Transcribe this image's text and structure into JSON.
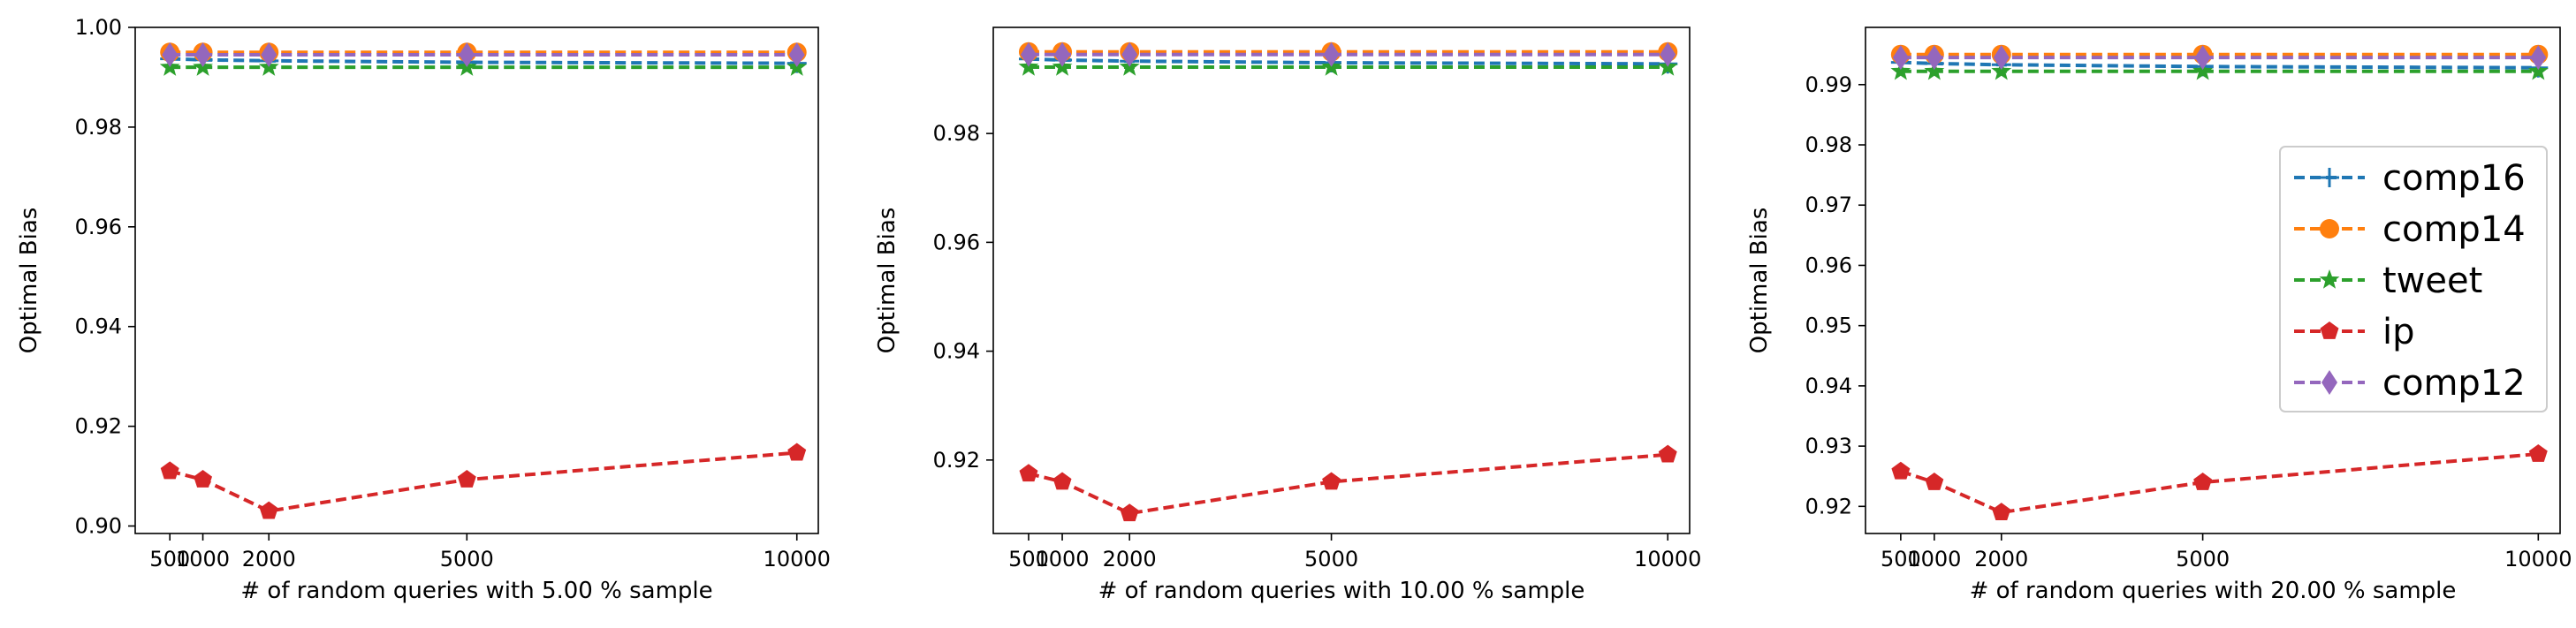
{
  "chart_data": [
    {
      "type": "line",
      "title": "",
      "xlabel": "# of random queries with 5.00 % sample",
      "ylabel": "Optimal Bias",
      "x": [
        500,
        1000,
        2000,
        5000,
        10000
      ],
      "xticks": [
        500,
        1000,
        2000,
        5000,
        10000
      ],
      "xtick_labels": [
        "500",
        "1000",
        "2000",
        "5000",
        "10000"
      ],
      "xlim": [
        -25,
        10325
      ],
      "ylim": [
        0.8985,
        1.0
      ],
      "yticks": [
        0.9,
        0.92,
        0.94,
        0.96,
        0.98,
        1.0
      ],
      "ytick_labels": [
        "0.90",
        "0.92",
        "0.94",
        "0.96",
        "0.98",
        "1.00"
      ],
      "legend": false,
      "series": [
        {
          "name": "comp16",
          "color": "#1f77b4",
          "marker": "plus",
          "values": [
            0.9937,
            0.9935,
            0.9933,
            0.993,
            0.9928
          ]
        },
        {
          "name": "comp14",
          "color": "#ff7f0e",
          "marker": "circle",
          "values": [
            0.995,
            0.995,
            0.995,
            0.995,
            0.995
          ]
        },
        {
          "name": "tweet",
          "color": "#2ca02c",
          "marker": "star",
          "values": [
            0.992,
            0.992,
            0.992,
            0.992,
            0.992
          ]
        },
        {
          "name": "ip",
          "color": "#d62728",
          "marker": "pentagon",
          "values": [
            0.911,
            0.9093,
            0.903,
            0.9093,
            0.9147
          ]
        },
        {
          "name": "comp12",
          "color": "#9467bd",
          "marker": "diamond",
          "values": [
            0.9945,
            0.9945,
            0.9945,
            0.9945,
            0.9945
          ]
        }
      ]
    },
    {
      "type": "line",
      "title": "",
      "xlabel": "# of random queries with 10.00 % sample",
      "ylabel": "Optimal Bias",
      "x": [
        500,
        1000,
        2000,
        5000,
        10000
      ],
      "xticks": [
        500,
        1000,
        2000,
        5000,
        10000
      ],
      "xtick_labels": [
        "500",
        "1000",
        "2000",
        "5000",
        "10000"
      ],
      "xlim": [
        -25,
        10325
      ],
      "ylim": [
        0.9065,
        0.9995
      ],
      "yticks": [
        0.92,
        0.94,
        0.96,
        0.98
      ],
      "ytick_labels": [
        "0.92",
        "0.94",
        "0.96",
        "0.98"
      ],
      "legend": false,
      "series": [
        {
          "name": "comp16",
          "color": "#1f77b4",
          "marker": "plus",
          "values": [
            0.9937,
            0.9935,
            0.9933,
            0.993,
            0.9928
          ]
        },
        {
          "name": "comp14",
          "color": "#ff7f0e",
          "marker": "circle",
          "values": [
            0.995,
            0.995,
            0.995,
            0.995,
            0.995
          ]
        },
        {
          "name": "tweet",
          "color": "#2ca02c",
          "marker": "star",
          "values": [
            0.9922,
            0.9922,
            0.9922,
            0.9922,
            0.9922
          ]
        },
        {
          "name": "ip",
          "color": "#d62728",
          "marker": "pentagon",
          "values": [
            0.9175,
            0.916,
            0.9102,
            0.916,
            0.921
          ]
        },
        {
          "name": "comp12",
          "color": "#9467bd",
          "marker": "diamond",
          "values": [
            0.9945,
            0.9945,
            0.9945,
            0.9945,
            0.9945
          ]
        }
      ]
    },
    {
      "type": "line",
      "title": "",
      "xlabel": "# of random queries with 20.00 % sample",
      "ylabel": "Optimal Bias",
      "x": [
        500,
        1000,
        2000,
        5000,
        10000
      ],
      "xticks": [
        500,
        1000,
        2000,
        5000,
        10000
      ],
      "xtick_labels": [
        "500",
        "1000",
        "2000",
        "5000",
        "10000"
      ],
      "xlim": [
        -25,
        10325
      ],
      "ylim": [
        0.9155,
        0.9995
      ],
      "yticks": [
        0.92,
        0.93,
        0.94,
        0.95,
        0.96,
        0.97,
        0.98,
        0.99
      ],
      "ytick_labels": [
        "0.92",
        "0.93",
        "0.94",
        "0.95",
        "0.96",
        "0.97",
        "0.98",
        "0.99"
      ],
      "legend": true,
      "legend_position": "center-right",
      "series": [
        {
          "name": "comp16",
          "color": "#1f77b4",
          "marker": "plus",
          "values": [
            0.9937,
            0.9935,
            0.9933,
            0.993,
            0.9928
          ]
        },
        {
          "name": "comp14",
          "color": "#ff7f0e",
          "marker": "circle",
          "values": [
            0.995,
            0.995,
            0.995,
            0.995,
            0.995
          ]
        },
        {
          "name": "tweet",
          "color": "#2ca02c",
          "marker": "star",
          "values": [
            0.9922,
            0.9922,
            0.9922,
            0.9922,
            0.9922
          ]
        },
        {
          "name": "ip",
          "color": "#d62728",
          "marker": "pentagon",
          "values": [
            0.9258,
            0.924,
            0.919,
            0.924,
            0.9287
          ]
        },
        {
          "name": "comp12",
          "color": "#9467bd",
          "marker": "diamond",
          "values": [
            0.9945,
            0.9945,
            0.9945,
            0.9945,
            0.9945
          ]
        }
      ]
    }
  ]
}
